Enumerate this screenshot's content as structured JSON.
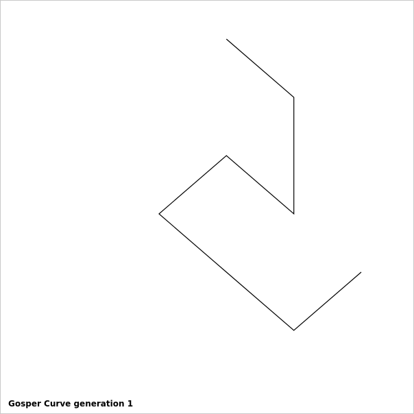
{
  "caption": "Gosper Curve generation 1",
  "curve": {
    "name": "Gosper Curve",
    "generation": 1,
    "line_color": "#000000",
    "background_color": "#ffffff",
    "frame_color": "#c8c8c8"
  }
}
